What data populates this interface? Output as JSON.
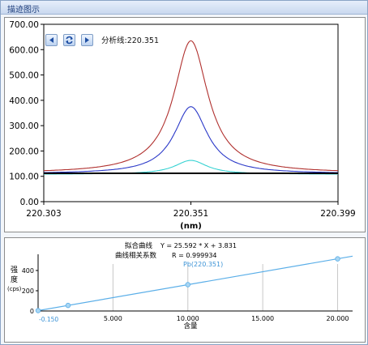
{
  "window": {
    "title": "描迹图示"
  },
  "spectrum": {
    "line_prefix": "分析线:",
    "line_value": "220.351",
    "x_unit": "(nm)",
    "controls": {
      "prev": "prev-arrow",
      "refresh": "refresh-icon",
      "next": "next-arrow"
    }
  },
  "calibration": {
    "fit_label": "拟合曲线",
    "fit_equation": "Y = 25.592 * X + 3.831",
    "corr_label": "曲线相关系数",
    "corr_value": "R = 0.999934",
    "series_label": "Pb(220.351)",
    "ylabel_1": "强",
    "ylabel_2": "度",
    "ylabel_3": "(cps)",
    "xlabel": "含量",
    "intercept_label": "-0.150"
  },
  "chart_data": [
    {
      "type": "line",
      "xlabel": "(nm)",
      "ylabel": "",
      "xlim": [
        220.303,
        220.399
      ],
      "ylim": [
        0,
        700
      ],
      "x_ticks": [
        "220.303",
        "220.351",
        "220.399"
      ],
      "y_ticks": [
        "0.00",
        "100.00",
        "200.00",
        "300.00",
        "400.00",
        "500.00",
        "600.00",
        "700.00"
      ],
      "series": [
        {
          "color": "#b0302e",
          "peak_x": 220.351,
          "peak": 635,
          "baseline": 112
        },
        {
          "color": "#2a38c8",
          "peak_x": 220.351,
          "peak": 375,
          "baseline": 110
        },
        {
          "color": "#35d2d2",
          "peak_x": 220.351,
          "peak": 163,
          "baseline": 108
        },
        {
          "color": "#000000",
          "peak_x": 220.351,
          "peak": 112,
          "baseline": 112
        }
      ]
    },
    {
      "type": "scatter",
      "title": "Pb(220.351)",
      "xlabel": "含量",
      "ylabel": "强度 (cps)",
      "xlim": [
        0,
        21
      ],
      "ylim": [
        0,
        560
      ],
      "x_ticks": [
        "5.000",
        "10.000",
        "15.000",
        "20.000"
      ],
      "y_ticks": [
        "0",
        "200",
        "400"
      ],
      "points": {
        "x": [
          0,
          2,
          10,
          20
        ],
        "y": [
          3.8,
          55,
          260,
          515
        ]
      },
      "fit": {
        "slope": 25.592,
        "intercept": 3.831
      }
    }
  ]
}
